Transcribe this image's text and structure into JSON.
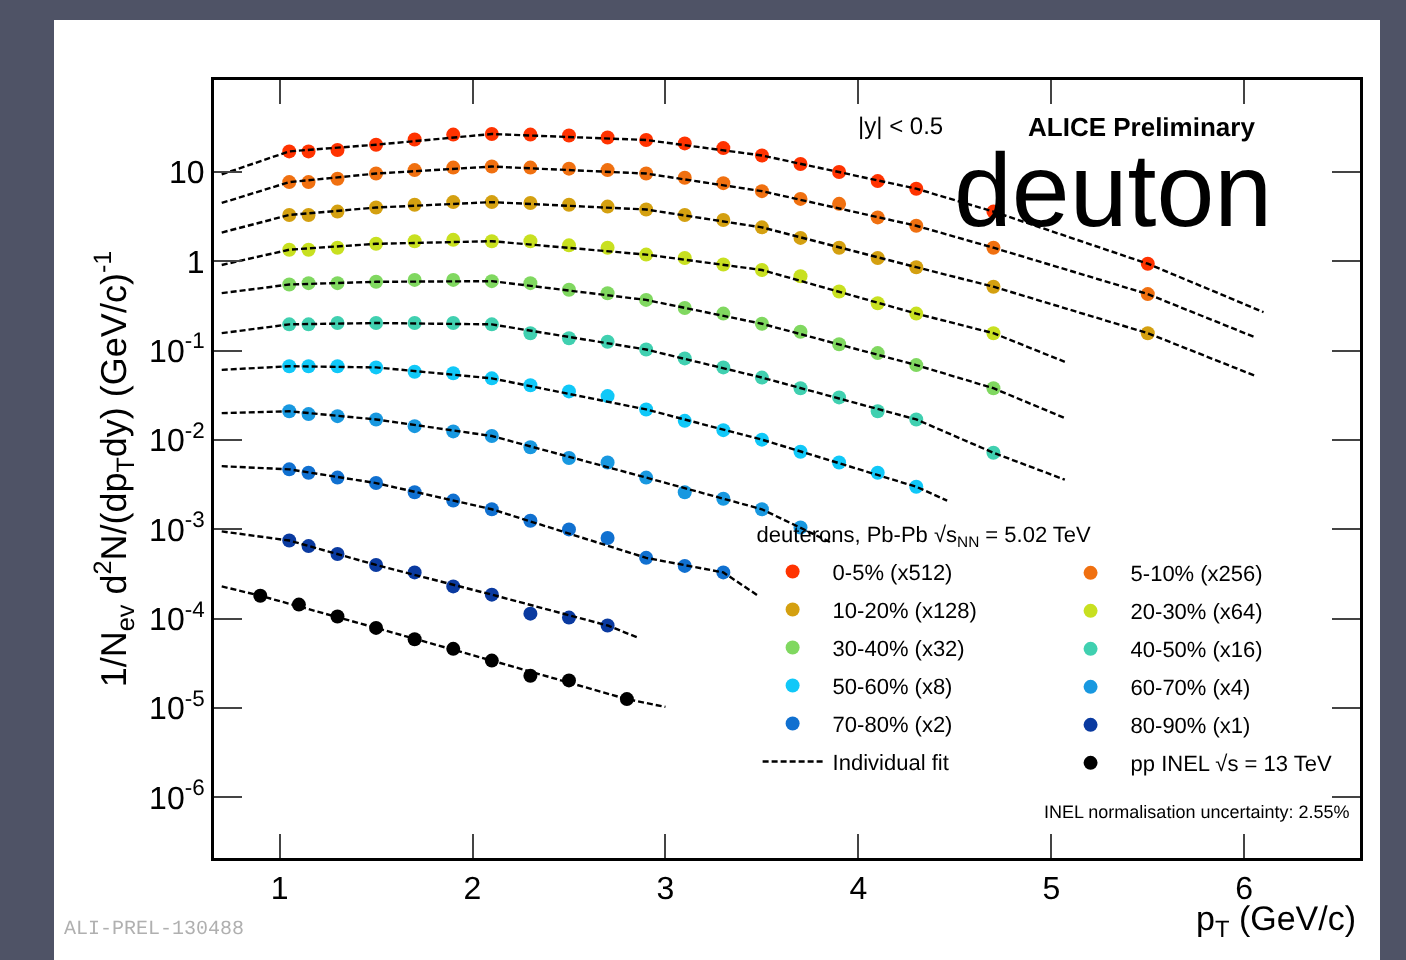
{
  "chart_data": {
    "type": "scatter",
    "xlabel": "p$_{T}$ (GeV/c)",
    "ylabel": "1/N$_{ev}$ d$^{2}$N/(dp$_{T}$dy) (GeV/c)$^{-1}$",
    "legend_title": "deuterons, Pb-Pb √s$_{NN}$ = 5.02 TeV",
    "annotations": [
      "ALICE Preliminary",
      "deuton",
      "|y| < 0.5",
      "INEL normalisation uncertainty: 2.55%",
      "ALI-PREL-130488"
    ],
    "xlim": [
      0.66,
      6.6
    ],
    "xticks": [
      1,
      2,
      3,
      4,
      5,
      6
    ],
    "ylim": [
      2.1e-07,
      107
    ],
    "log": "y",
    "yticks": [
      {
        "value": 1e-06,
        "label": "10$^{-6}$"
      },
      {
        "value": 1e-05,
        "label": "10$^{-5}$"
      },
      {
        "value": 0.0001,
        "label": "10$^{-4}$"
      },
      {
        "value": 0.001,
        "label": "10$^{-3}$"
      },
      {
        "value": 0.01,
        "label": "10$^{-2}$"
      },
      {
        "value": 0.1,
        "label": "10$^{-1}$"
      },
      1,
      10
    ],
    "grid": false,
    "legend": "bottom right",
    "marker": "circle",
    "series": [
      {
        "name": "0-5% (x512)",
        "color": "#ff3300",
        "x": [
          1.05,
          1.15,
          1.3,
          1.5,
          1.7,
          1.9,
          2.1,
          2.3,
          2.5,
          2.7,
          2.9,
          3.1,
          3.3,
          3.5,
          3.7,
          3.9,
          4.1,
          4.3,
          4.7,
          5.5
        ],
        "values": [
          17.0,
          17.0,
          17.6,
          20.2,
          23.1,
          26.2,
          26.6,
          26.2,
          25.6,
          24.3,
          22.8,
          20.9,
          18.5,
          15.3,
          12.3,
          10,
          7.9,
          6.5,
          3.6,
          0.94
        ]
      },
      {
        "name": "5-10% (x256)",
        "color": "#f07010",
        "x": [
          1.05,
          1.15,
          1.3,
          1.5,
          1.7,
          1.9,
          2.1,
          2.3,
          2.5,
          2.7,
          2.9,
          3.1,
          3.3,
          3.5,
          3.7,
          3.9,
          4.1,
          4.3,
          4.7,
          5.5
        ],
        "values": [
          7.7,
          7.7,
          8.4,
          9.6,
          10.5,
          11.2,
          11.5,
          11.2,
          10.9,
          10.5,
          9.6,
          8.6,
          7.5,
          6.1,
          5.0,
          4.4,
          3.1,
          2.5,
          1.42,
          0.43
        ]
      },
      {
        "name": "10-20% (x128)",
        "color": "#d4a010",
        "x": [
          1.05,
          1.15,
          1.3,
          1.5,
          1.7,
          1.9,
          2.1,
          2.3,
          2.5,
          2.7,
          2.9,
          3.1,
          3.3,
          3.5,
          3.7,
          3.9,
          4.1,
          4.3,
          4.7,
          5.5
        ],
        "values": [
          3.3,
          3.3,
          3.6,
          4.0,
          4.3,
          4.6,
          4.6,
          4.5,
          4.3,
          4.1,
          3.8,
          3.3,
          2.9,
          2.4,
          1.83,
          1.42,
          1.09,
          0.86,
          0.52,
          0.157
        ]
      },
      {
        "name": "20-30% (x64)",
        "color": "#c8e020",
        "x": [
          1.05,
          1.15,
          1.3,
          1.5,
          1.7,
          1.9,
          2.1,
          2.3,
          2.5,
          2.7,
          2.9,
          3.1,
          3.3,
          3.5,
          3.7,
          3.9,
          4.1,
          4.3,
          4.7
        ],
        "values": [
          1.35,
          1.35,
          1.42,
          1.57,
          1.68,
          1.74,
          1.68,
          1.68,
          1.51,
          1.42,
          1.19,
          1.09,
          0.92,
          0.8,
          0.68,
          0.46,
          0.34,
          0.26,
          0.157
        ]
      },
      {
        "name": "30-40% (x32)",
        "color": "#80d860",
        "x": [
          1.05,
          1.15,
          1.3,
          1.5,
          1.7,
          1.9,
          2.1,
          2.3,
          2.5,
          2.7,
          2.9,
          3.1,
          3.3,
          3.5,
          3.7,
          3.9,
          4.1,
          4.3,
          4.7
        ],
        "values": [
          0.55,
          0.57,
          0.57,
          0.59,
          0.62,
          0.62,
          0.6,
          0.57,
          0.48,
          0.44,
          0.37,
          0.3,
          0.26,
          0.2,
          0.163,
          0.118,
          0.094,
          0.069,
          0.038
        ]
      },
      {
        "name": "40-50% (x16)",
        "color": "#40d0b0",
        "x": [
          1.05,
          1.15,
          1.3,
          1.5,
          1.7,
          1.9,
          2.1,
          2.3,
          2.5,
          2.7,
          2.9,
          3.1,
          3.3,
          3.5,
          3.7,
          3.9,
          4.1,
          4.3,
          4.7
        ],
        "values": [
          0.197,
          0.197,
          0.204,
          0.204,
          0.204,
          0.204,
          0.197,
          0.157,
          0.138,
          0.126,
          0.103,
          0.082,
          0.065,
          0.05,
          0.038,
          0.03,
          0.021,
          0.017,
          0.0072
        ]
      },
      {
        "name": "50-60% (x8)",
        "color": "#10c8f8",
        "x": [
          1.05,
          1.15,
          1.3,
          1.5,
          1.7,
          1.9,
          2.1,
          2.3,
          2.5,
          2.7,
          2.9,
          3.1,
          3.3,
          3.5,
          3.7,
          3.9,
          4.1,
          4.3
        ],
        "values": [
          0.067,
          0.067,
          0.067,
          0.065,
          0.058,
          0.056,
          0.049,
          0.041,
          0.035,
          0.031,
          0.022,
          0.0164,
          0.0129,
          0.0101,
          0.0074,
          0.0056,
          0.0043,
          0.003
        ]
      },
      {
        "name": "60-70% (x4)",
        "color": "#1898e0",
        "x": [
          1.05,
          1.15,
          1.3,
          1.5,
          1.7,
          1.9,
          2.1,
          2.3,
          2.5,
          2.7,
          2.9,
          3.1,
          3.3,
          3.5,
          3.7
        ],
        "values": [
          0.021,
          0.0195,
          0.0185,
          0.017,
          0.0143,
          0.0125,
          0.0111,
          0.0083,
          0.0063,
          0.0056,
          0.0038,
          0.0026,
          0.0022,
          0.00168,
          0.00105
        ]
      },
      {
        "name": "70-80% (x2)",
        "color": "#1070d0",
        "x": [
          1.05,
          1.15,
          1.3,
          1.5,
          1.7,
          1.9,
          2.1,
          2.3,
          2.5,
          2.7,
          2.9,
          3.1,
          3.3
        ],
        "values": [
          0.0047,
          0.0043,
          0.0038,
          0.0033,
          0.0026,
          0.0021,
          0.00168,
          0.00125,
          0.001,
          0.0008,
          0.00048,
          0.00039,
          0.00033
        ]
      },
      {
        "name": "80-90% (x1)",
        "color": "#0a3aa0",
        "x": [
          1.05,
          1.15,
          1.3,
          1.5,
          1.7,
          1.9,
          2.1,
          2.3,
          2.5,
          2.7
        ],
        "values": [
          0.00075,
          0.00065,
          0.00053,
          0.0004,
          0.00033,
          0.00023,
          0.000186,
          0.000114,
          0.000103,
          8.4e-05
        ]
      },
      {
        "name": "Individual fit",
        "type": "line",
        "marker": "none",
        "line_style": "dashed",
        "color": "#000000",
        "x": [
          0.7,
          1.05,
          1.5,
          2.1,
          2.9,
          3.5,
          4.3,
          4.7,
          5.5,
          6.1
        ],
        "values": [
          9.4,
          17.0,
          20.2,
          26.6,
          22.8,
          15.3,
          6.5,
          3.6,
          0.94,
          0.27
        ]
      },
      {
        "name": "pp INEL √s = 13 TeV",
        "color": "#000000",
        "x": [
          0.9,
          1.1,
          1.3,
          1.5,
          1.7,
          1.9,
          2.1,
          2.3,
          2.5,
          2.8
        ],
        "values": [
          0.000181,
          0.000144,
          0.000106,
          7.9e-05,
          5.9e-05,
          4.6e-05,
          3.4e-05,
          2.3e-05,
          2.04e-05,
          1.26e-05
        ]
      },
      {
        "type": "line",
        "marker": "none",
        "line_style": "dashed",
        "color": "#000000",
        "x": [
          0.7,
          1.05,
          1.5,
          2.1,
          2.9,
          3.5,
          4.3,
          4.7,
          5.5,
          6.06
        ],
        "values": [
          4.5,
          7.7,
          9.6,
          11.5,
          9.6,
          6.1,
          2.5,
          1.42,
          0.43,
          0.14
        ]
      },
      {
        "type": "line",
        "marker": "none",
        "line_style": "dashed",
        "color": "#000000",
        "x": [
          0.7,
          1.05,
          1.5,
          2.1,
          2.9,
          3.5,
          4.3,
          4.7,
          5.5,
          6.06
        ],
        "values": [
          2.1,
          3.3,
          4.0,
          4.6,
          3.8,
          2.4,
          0.86,
          0.52,
          0.157,
          0.052
        ]
      },
      {
        "type": "line",
        "marker": "none",
        "line_style": "dashed",
        "color": "#000000",
        "x": [
          0.7,
          1.05,
          1.5,
          2.1,
          2.9,
          3.5,
          4.3,
          4.7,
          5.07
        ],
        "values": [
          0.91,
          1.35,
          1.57,
          1.68,
          1.19,
          0.8,
          0.26,
          0.157,
          0.075
        ]
      },
      {
        "type": "line",
        "marker": "none",
        "line_style": "dashed",
        "color": "#000000",
        "x": [
          0.7,
          1.05,
          1.5,
          2.1,
          2.9,
          3.5,
          4.3,
          4.7,
          5.07
        ],
        "values": [
          0.44,
          0.55,
          0.59,
          0.6,
          0.37,
          0.2,
          0.069,
          0.038,
          0.0176
        ]
      },
      {
        "type": "line",
        "marker": "none",
        "line_style": "dashed",
        "color": "#000000",
        "x": [
          0.7,
          1.05,
          1.5,
          2.1,
          2.9,
          3.5,
          4.3,
          4.7,
          5.07
        ],
        "values": [
          0.157,
          0.197,
          0.204,
          0.197,
          0.103,
          0.05,
          0.017,
          0.0072,
          0.0036
        ]
      },
      {
        "type": "line",
        "marker": "none",
        "line_style": "dashed",
        "color": "#000000",
        "x": [
          0.7,
          1.05,
          1.5,
          2.1,
          2.9,
          3.5,
          4.3,
          4.46
        ],
        "values": [
          0.061,
          0.067,
          0.065,
          0.049,
          0.022,
          0.0101,
          0.003,
          0.0021
        ]
      },
      {
        "type": "line",
        "marker": "none",
        "line_style": "dashed",
        "color": "#000000",
        "x": [
          0.7,
          1.05,
          1.5,
          2.1,
          2.9,
          3.5,
          3.86
        ],
        "values": [
          0.02,
          0.021,
          0.017,
          0.0111,
          0.0038,
          0.00168,
          0.00071
        ]
      },
      {
        "type": "line",
        "marker": "none",
        "line_style": "dashed",
        "color": "#000000",
        "x": [
          0.7,
          1.05,
          1.5,
          2.1,
          2.9,
          3.3,
          3.48
        ],
        "values": [
          0.0051,
          0.0047,
          0.0033,
          0.00168,
          0.00048,
          0.00033,
          0.000181
        ]
      },
      {
        "type": "line",
        "marker": "none",
        "line_style": "dashed",
        "color": "#000000",
        "x": [
          0.7,
          1.05,
          1.5,
          2.1,
          2.7,
          2.86
        ],
        "values": [
          0.00095,
          0.00075,
          0.0004,
          0.000186,
          8.4e-05,
          6.12e-05
        ]
      },
      {
        "type": "line",
        "marker": "none",
        "line_style": "dashed",
        "color": "#000000",
        "x": [
          0.7,
          0.9,
          1.5,
          2.1,
          2.8,
          3.0
        ],
        "values": [
          0.00023,
          0.000181,
          7.9e-05,
          3.4e-05,
          1.26e-05,
          1.03e-05
        ]
      }
    ]
  }
}
